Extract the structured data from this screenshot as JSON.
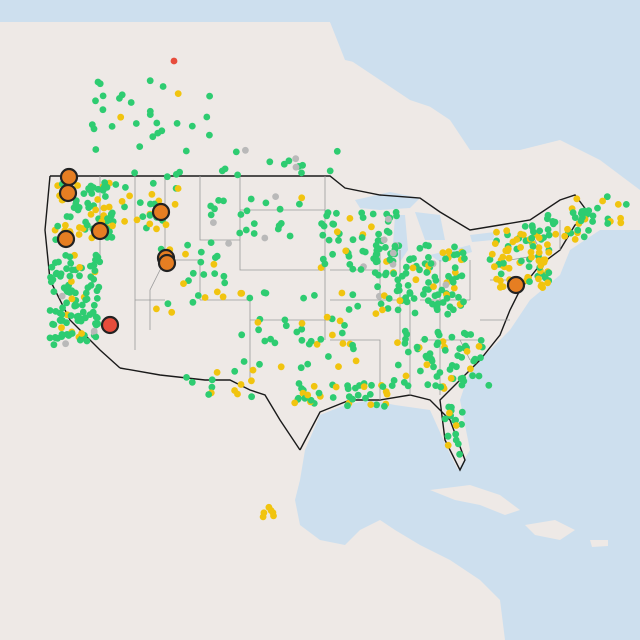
{
  "map": {
    "colors": {
      "water": "#cddfee",
      "land": "#eee9e6",
      "good": "#2ecc71",
      "moderate": "#f1c40f",
      "unhealthy_sensitive": "#e67e22",
      "unhealthy": "#e74c3c",
      "no_data": "#b9b9b9"
    },
    "station_categories": [
      "good",
      "moderate",
      "unhealthy_sensitive",
      "unhealthy",
      "no_data"
    ],
    "highlighted_station_counts": {
      "unhealthy_sensitive": 8,
      "unhealthy": 1
    }
  }
}
